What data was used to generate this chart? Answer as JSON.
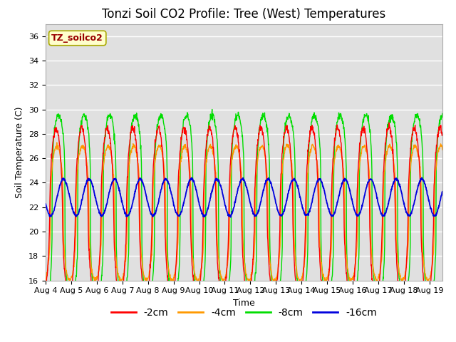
{
  "title": "Tonzi Soil CO2 Profile: Tree (West) Temperatures",
  "ylabel": "Soil Temperature (C)",
  "xlabel": "Time",
  "annotation": "TZ_soilco2",
  "ylim": [
    16,
    37
  ],
  "yticks": [
    16,
    18,
    20,
    22,
    24,
    26,
    28,
    30,
    32,
    34,
    36
  ],
  "xtick_labels": [
    "Aug 4",
    "Aug 5",
    "Aug 6",
    "Aug 7",
    "Aug 8",
    "Aug 9",
    "Aug 10",
    "Aug 11",
    "Aug 12",
    "Aug 13",
    "Aug 14",
    "Aug 15",
    "Aug 16",
    "Aug 17",
    "Aug 18",
    "Aug 19"
  ],
  "n_days": 15.5,
  "pts_per_day": 96,
  "colors": {
    "2cm": "#ff0000",
    "4cm": "#ff9900",
    "8cm": "#00dd00",
    "16cm": "#0000dd"
  },
  "legend_labels": [
    "-2cm",
    "-4cm",
    "-8cm",
    "-16cm"
  ],
  "background_color": "#e0e0e0",
  "title_fontsize": 12,
  "axis_fontsize": 9,
  "tick_fontsize": 8,
  "legend_fontsize": 10
}
